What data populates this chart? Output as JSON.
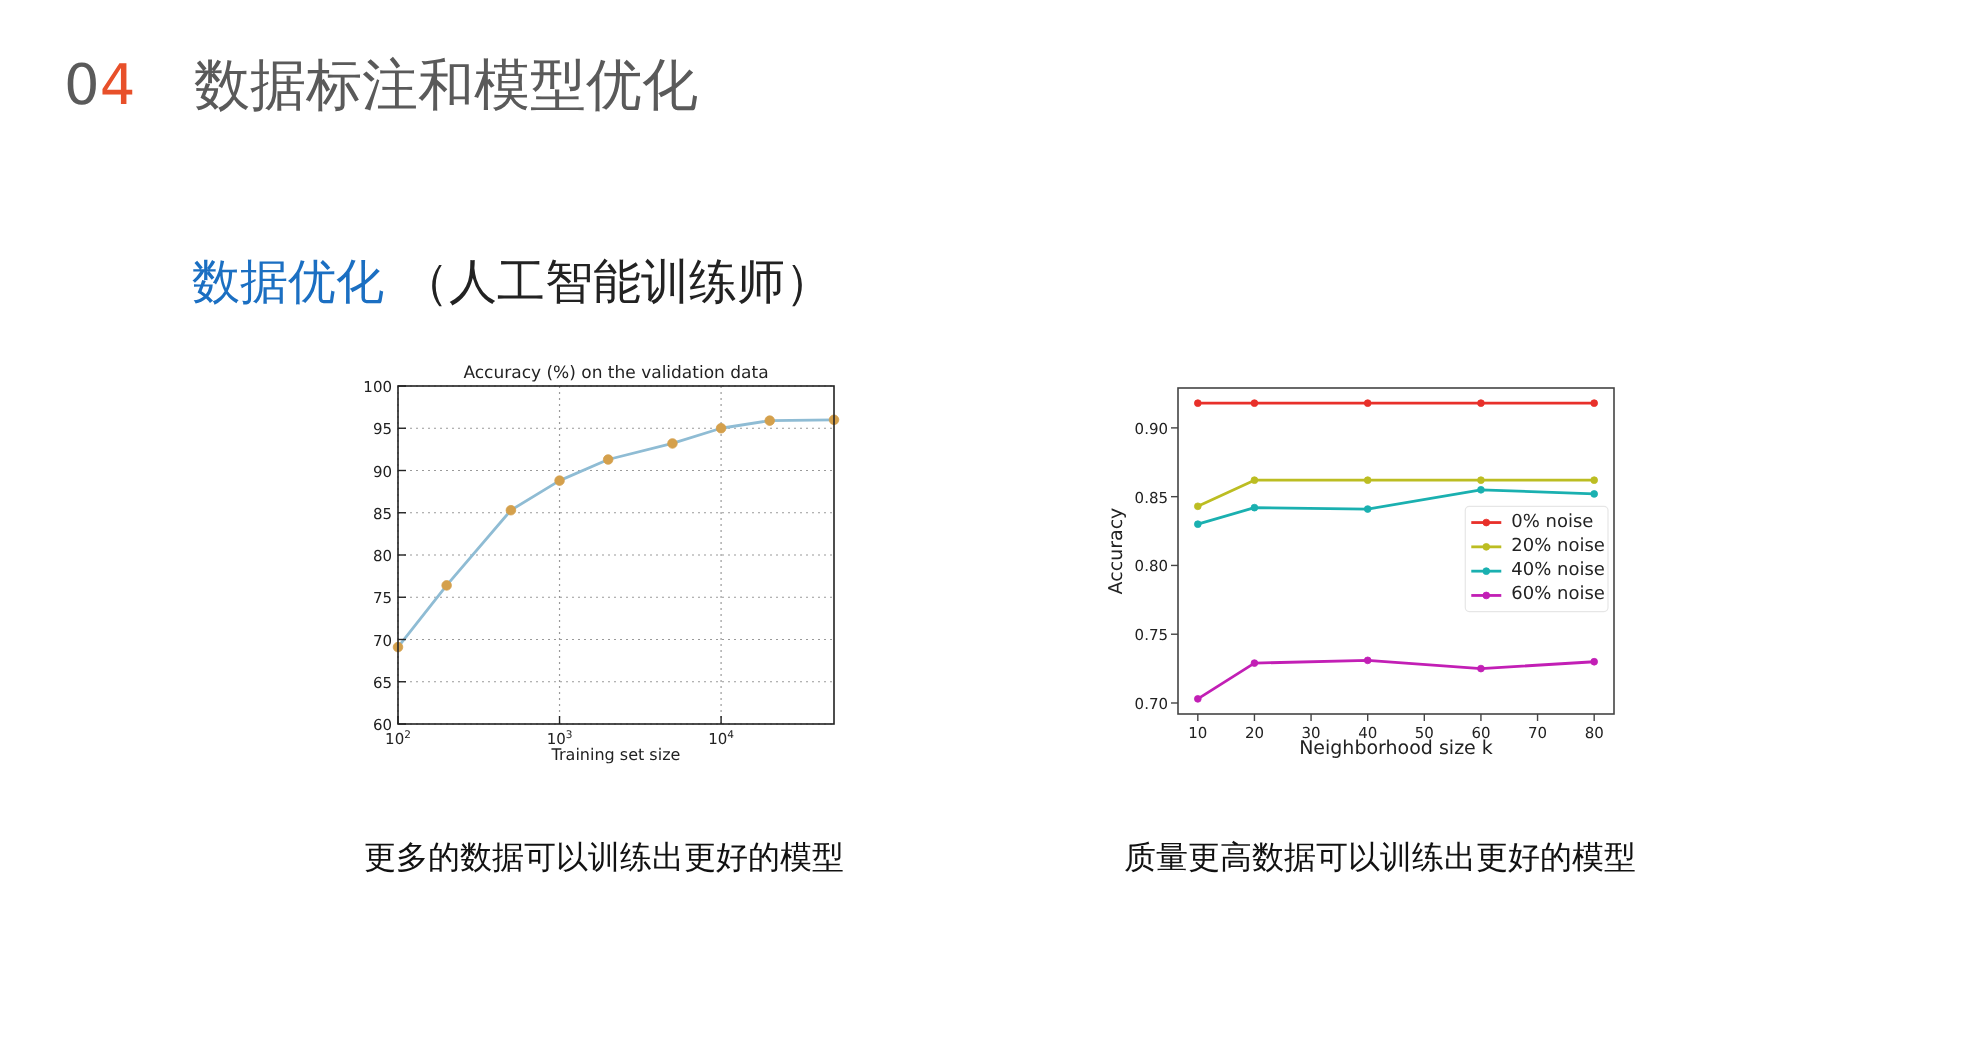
{
  "chart_data": [
    {
      "type": "other",
      "title": "04 数据标注和模型优化",
      "subtitle": "数据优化 （人工智能训练师）"
    },
    {
      "type": "line",
      "title": "Accuracy (%) on the validation data",
      "xlabel": "Training set size",
      "x": [
        100,
        200,
        500,
        1000,
        2000,
        5000,
        10000,
        20000,
        50000
      ],
      "series": [
        {
          "type": "line",
          "marker": "none",
          "color": "#8fbcd4",
          "values": [
            69.1,
            76.4,
            85.3,
            88.8,
            91.3,
            93.2,
            95.0,
            95.9,
            96.0
          ]
        },
        {
          "type": "scatter",
          "color": "#d4a04c",
          "values": [
            69.1,
            76.4,
            85.3,
            88.8,
            91.3,
            93.2,
            95.0,
            95.9,
            96.0
          ]
        }
      ],
      "xlim": [
        100,
        50000
      ],
      "ylim": [
        60,
        100
      ],
      "xticks": [
        {
          "value": 100,
          "label": "10$^{2}$"
        },
        {
          "value": 1000,
          "label": "10$^{3}$"
        },
        {
          "value": 10000,
          "label": "10$^{4}$"
        }
      ],
      "yticks": [
        60,
        65,
        70,
        75,
        80,
        85,
        90,
        95,
        100
      ],
      "log": "x",
      "grid": true,
      "marker": "circle",
      "annotations": [
        "更多的数据可以训练出更好的模型"
      ]
    },
    {
      "type": "line",
      "xlabel": "Neighborhood size k",
      "ylabel": "Accuracy",
      "x": [
        10,
        20,
        40,
        60,
        80
      ],
      "series": [
        {
          "name": "0% noise",
          "color": "#e8302a",
          "values": [
            0.918,
            0.918,
            0.918,
            0.918,
            0.918
          ]
        },
        {
          "name": "20% noise",
          "color": "#bcbd22",
          "values": [
            0.843,
            0.862,
            0.862,
            0.862,
            0.862
          ]
        },
        {
          "name": "40% noise",
          "color": "#1ab0b0",
          "values": [
            0.83,
            0.842,
            0.841,
            0.855,
            0.852
          ]
        },
        {
          "name": "60% noise",
          "color": "#c21fb5",
          "values": [
            0.703,
            0.729,
            0.731,
            0.725,
            0.73
          ]
        }
      ],
      "xlim": [
        6.5,
        83.5
      ],
      "ylim": [
        0.692,
        0.929
      ],
      "xticks": [
        10,
        20,
        30,
        40,
        50,
        60,
        70,
        80
      ],
      "yticks": [
        {
          "value": 0.7,
          "label": "0.70"
        },
        {
          "value": 0.75,
          "label": "0.75"
        },
        {
          "value": 0.8,
          "label": "0.80"
        },
        {
          "value": 0.85,
          "label": "0.85"
        },
        {
          "value": 0.9,
          "label": "0.90"
        }
      ],
      "legend": "right",
      "marker": "circle",
      "annotations": [
        "质量更高数据可以训练出更好的模型"
      ]
    }
  ]
}
